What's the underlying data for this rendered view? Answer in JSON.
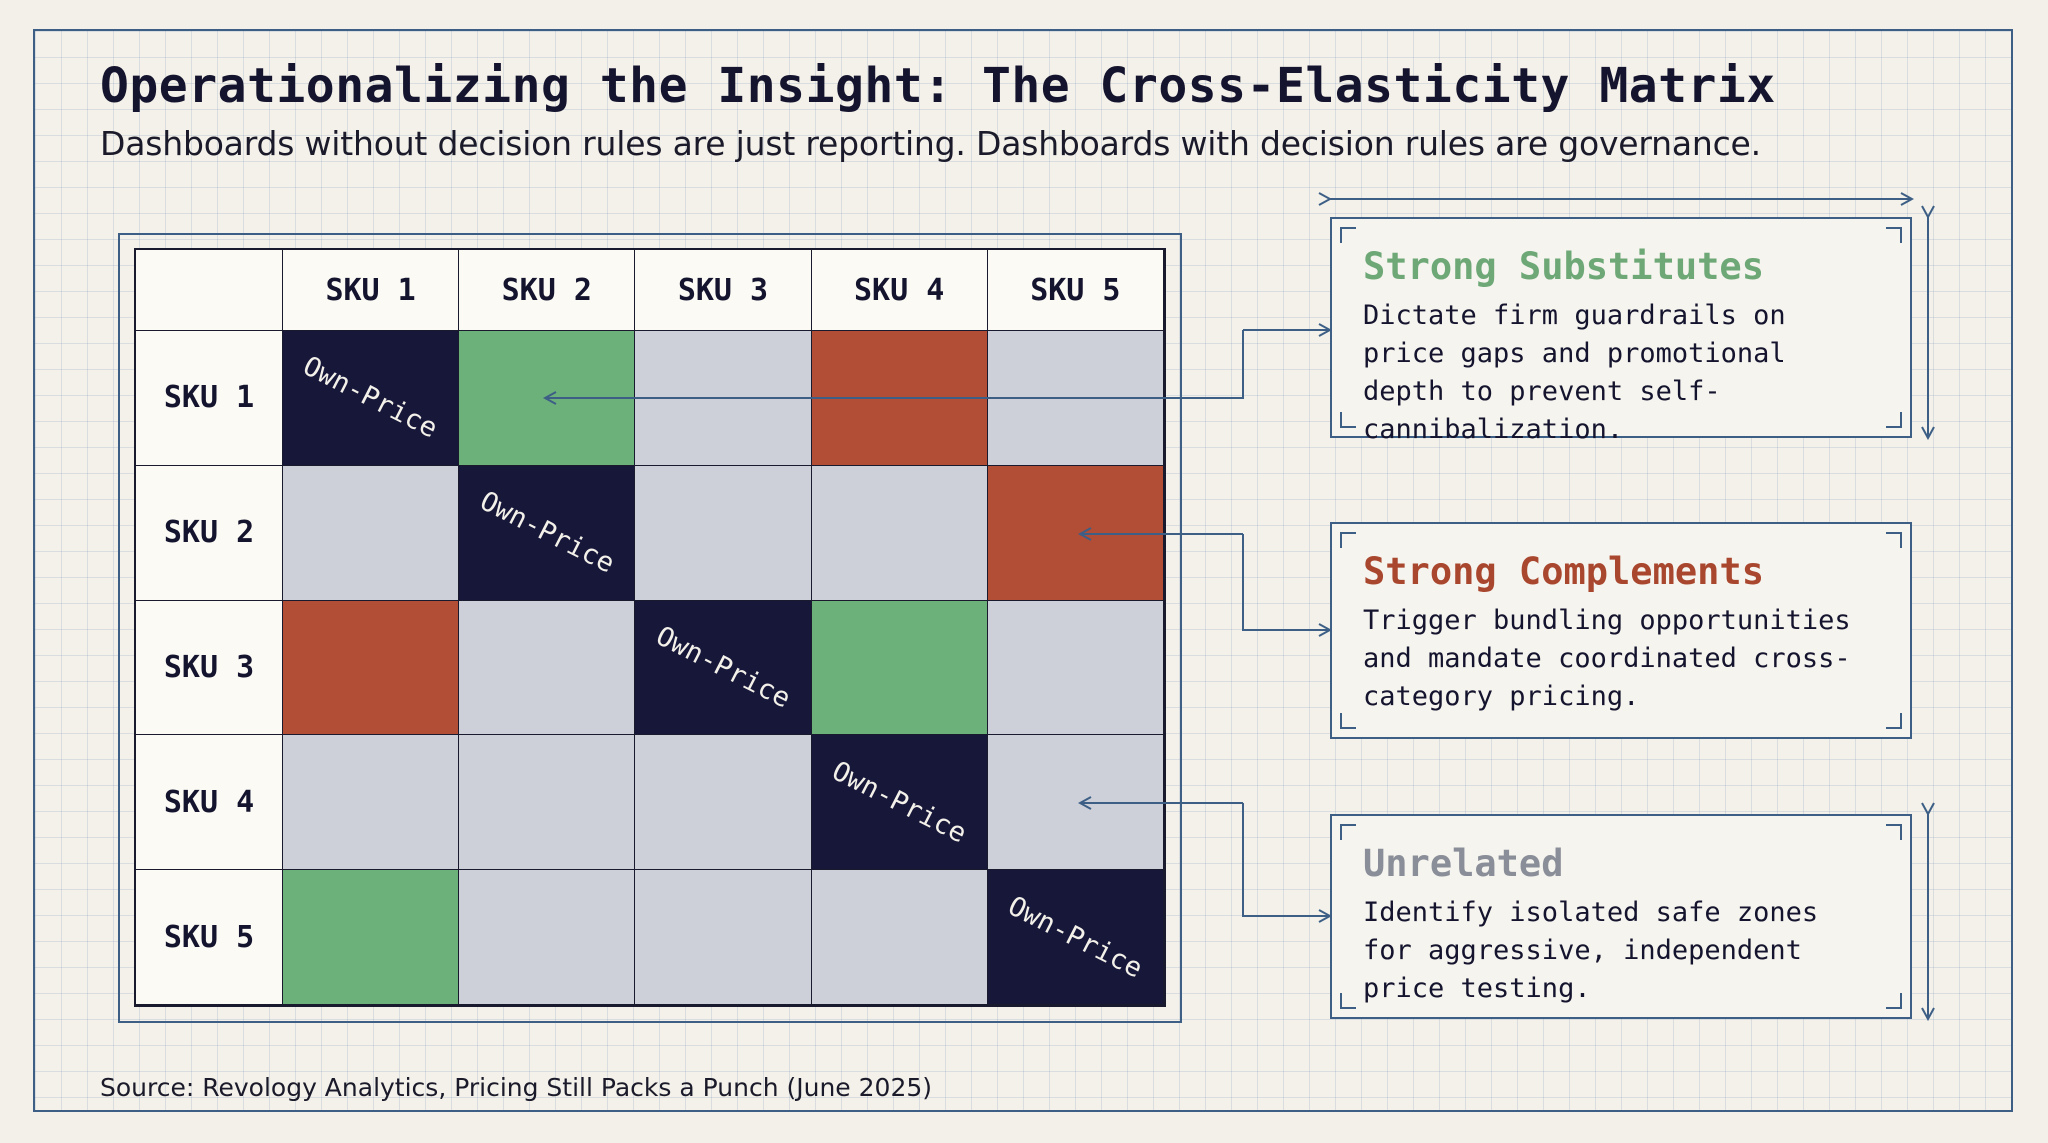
{
  "header": {
    "title": "Operationalizing the Insight: The Cross-Elasticity Matrix",
    "subtitle": "Dashboards without decision rules are just reporting. Dashboards with decision rules are governance."
  },
  "matrix": {
    "columns": [
      "SKU 1",
      "SKU 2",
      "SKU 3",
      "SKU 4",
      "SKU 5"
    ],
    "rows": [
      "SKU 1",
      "SKU 2",
      "SKU 3",
      "SKU 4",
      "SKU 5"
    ],
    "diagonal_label": "Own-Price",
    "cells": [
      [
        "own",
        "substitute",
        "unrelated",
        "complement",
        "unrelated"
      ],
      [
        "unrelated",
        "own",
        "unrelated",
        "unrelated",
        "complement"
      ],
      [
        "complement",
        "unrelated",
        "own",
        "substitute",
        "unrelated"
      ],
      [
        "unrelated",
        "unrelated",
        "unrelated",
        "own",
        "unrelated"
      ],
      [
        "substitute",
        "unrelated",
        "unrelated",
        "unrelated",
        "own"
      ]
    ]
  },
  "callouts": {
    "substitutes": {
      "title": "Strong Substitutes",
      "text": "Dictate firm guardrails on price gaps and promotional depth to prevent self-cannibalization."
    },
    "complements": {
      "title": "Strong Complements",
      "text": "Trigger bundling opportunities and mandate coordinated cross-category pricing."
    },
    "unrelated": {
      "title": "Unrelated",
      "text": "Identify isolated safe zones for aggressive, independent price testing."
    }
  },
  "colors": {
    "own": "#17173a",
    "substitute": "#6cb07a",
    "complement": "#b24e35",
    "unrelated": "#cdd0d8",
    "accent": "#3d5f86"
  },
  "footer": {
    "source": "Source: Revology Analytics, Pricing Still Packs a Punch (June 2025)"
  }
}
